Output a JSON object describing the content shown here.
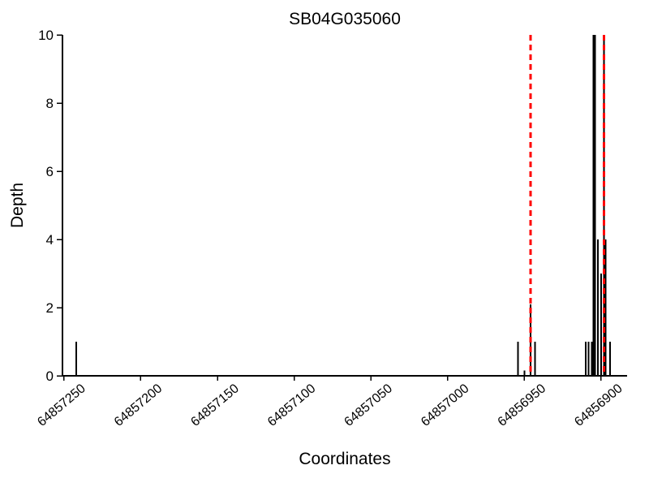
{
  "title": "SB04G035060",
  "colors": {
    "background": "#ffffff",
    "bar": "#000000",
    "axis": "#000000",
    "text": "#000000",
    "boundary_line": "#ff0000"
  },
  "chart_data": {
    "type": "bar",
    "title": "SB04G035060",
    "xlabel": "Coordinates",
    "ylabel": "Depth",
    "x_reversed": true,
    "xlim": [
      64857251,
      64856883
    ],
    "ylim": [
      0,
      10
    ],
    "grid": false,
    "legend": null,
    "yticks": [
      0,
      2,
      4,
      6,
      8,
      10
    ],
    "xticks": [
      64857250,
      64857200,
      64857150,
      64857100,
      64857050,
      64857000,
      64856950,
      64856900
    ],
    "xtick_labels": [
      "64857250",
      "64857200",
      "64857150",
      "64857100",
      "64857050",
      "64857000",
      "64856950",
      "64856900"
    ],
    "xtick_rotation_deg": 40,
    "bars": [
      {
        "coord": 64857242,
        "depth": 1
      },
      {
        "coord": 64856954,
        "depth": 1
      },
      {
        "coord": 64856950,
        "depth": 0.15
      },
      {
        "coord": 64856946,
        "depth": 2.1
      },
      {
        "coord": 64856943,
        "depth": 1
      },
      {
        "coord": 64856910,
        "depth": 1
      },
      {
        "coord": 64856908,
        "depth": 1
      },
      {
        "coord": 64856906,
        "depth": 1
      },
      {
        "coord": 64856905,
        "depth": 10
      },
      {
        "coord": 64856904,
        "depth": 10
      },
      {
        "coord": 64856902,
        "depth": 4
      },
      {
        "coord": 64856900,
        "depth": 3
      },
      {
        "coord": 64856898,
        "depth": 10
      },
      {
        "coord": 64856897,
        "depth": 4
      },
      {
        "coord": 64856894,
        "depth": 1
      }
    ],
    "vlines": {
      "style": "dashed",
      "color": "#ff0000",
      "positions": [
        64856946,
        64856898
      ]
    }
  }
}
